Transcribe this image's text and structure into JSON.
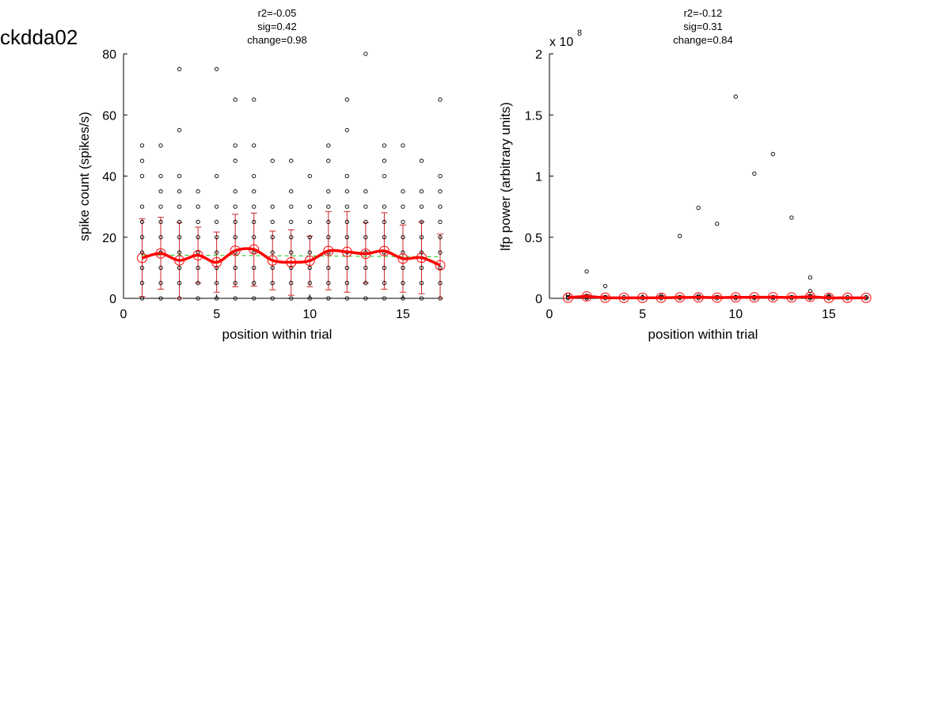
{
  "figure_title": "ckdda02",
  "colors": {
    "mean": "#ff0000",
    "errorbar": "#cc2222",
    "trend": "#33cc33",
    "points": "#000000"
  },
  "chart_data": [
    {
      "type": "scatter",
      "title_lines": [
        "r2=-0.05",
        "sig=0.42",
        "change=0.98"
      ],
      "xlabel": "position within trial",
      "ylabel": "spike count (spikes/s)",
      "xlim": [
        0,
        17
      ],
      "ylim": [
        0,
        80
      ],
      "xticks": [
        0,
        5,
        10,
        15
      ],
      "yticks": [
        0,
        20,
        40,
        60,
        80
      ],
      "ytick_labels": [
        "0",
        "20",
        "40",
        "60",
        "80"
      ],
      "exponent_label": "",
      "points": [
        {
          "x": 1,
          "ys": [
            0,
            5,
            10,
            15,
            20,
            25,
            30,
            40,
            45,
            50
          ]
        },
        {
          "x": 2,
          "ys": [
            0,
            5,
            10,
            15,
            20,
            25,
            30,
            35,
            40,
            50
          ]
        },
        {
          "x": 3,
          "ys": [
            0,
            5,
            10,
            15,
            20,
            25,
            30,
            35,
            40,
            55,
            75
          ]
        },
        {
          "x": 4,
          "ys": [
            0,
            5,
            10,
            15,
            20,
            25,
            30,
            35
          ]
        },
        {
          "x": 5,
          "ys": [
            0,
            5,
            10,
            15,
            20,
            25,
            30,
            40,
            75
          ]
        },
        {
          "x": 6,
          "ys": [
            0,
            5,
            10,
            15,
            20,
            25,
            30,
            35,
            45,
            50,
            65
          ]
        },
        {
          "x": 7,
          "ys": [
            0,
            5,
            10,
            15,
            20,
            25,
            30,
            35,
            40,
            50,
            65
          ]
        },
        {
          "x": 8,
          "ys": [
            0,
            5,
            10,
            15,
            20,
            25,
            30,
            45
          ]
        },
        {
          "x": 9,
          "ys": [
            0,
            5,
            10,
            15,
            20,
            25,
            30,
            35,
            45
          ]
        },
        {
          "x": 10,
          "ys": [
            0,
            5,
            10,
            15,
            20,
            25,
            30,
            40
          ]
        },
        {
          "x": 11,
          "ys": [
            0,
            5,
            10,
            15,
            20,
            25,
            30,
            35,
            45,
            50
          ]
        },
        {
          "x": 12,
          "ys": [
            0,
            5,
            10,
            15,
            20,
            25,
            30,
            35,
            40,
            55,
            65
          ]
        },
        {
          "x": 13,
          "ys": [
            0,
            5,
            10,
            15,
            20,
            25,
            30,
            35,
            80
          ]
        },
        {
          "x": 14,
          "ys": [
            0,
            5,
            10,
            15,
            20,
            25,
            30,
            40,
            45,
            50
          ]
        },
        {
          "x": 15,
          "ys": [
            0,
            5,
            10,
            15,
            20,
            25,
            30,
            35,
            50
          ]
        },
        {
          "x": 16,
          "ys": [
            0,
            5,
            10,
            15,
            20,
            25,
            30,
            35,
            45
          ]
        },
        {
          "x": 17,
          "ys": [
            0,
            5,
            10,
            15,
            20,
            25,
            30,
            35,
            40,
            65
          ]
        }
      ],
      "mean": {
        "x": [
          1,
          2,
          3,
          4,
          5,
          6,
          7,
          8,
          9,
          10,
          11,
          12,
          13,
          14,
          15,
          16,
          17
        ],
        "y": [
          13.2,
          14.7,
          12.4,
          14.1,
          11.8,
          15.6,
          16.0,
          12.4,
          11.8,
          12.3,
          15.5,
          15.2,
          14.6,
          15.5,
          13.0,
          13.3,
          10.8
        ]
      },
      "error_low": [
        0.6,
        3.0,
        0.0,
        5.0,
        2.0,
        3.8,
        4.0,
        2.8,
        1.0,
        3.8,
        2.8,
        2.0,
        5.0,
        3.0,
        2.0,
        1.5,
        0.0
      ],
      "error_high": [
        26.0,
        26.5,
        24.8,
        23.3,
        21.7,
        27.5,
        27.9,
        22.0,
        22.4,
        20.3,
        28.4,
        28.4,
        24.8,
        28.0,
        24.0,
        25.0,
        21.0
      ],
      "trend": {
        "x": [
          1,
          17
        ],
        "y": [
          14.2,
          13.6
        ]
      }
    },
    {
      "type": "scatter",
      "title_lines": [
        "r2=-0.12",
        "sig=0.31",
        "change=0.84"
      ],
      "xlabel": "position within trial",
      "ylabel": "lfp power (arbitrary units)",
      "xlim": [
        0,
        17
      ],
      "ylim": [
        0,
        2
      ],
      "xticks": [
        0,
        5,
        10,
        15
      ],
      "yticks": [
        0,
        0.5,
        1,
        1.5,
        2
      ],
      "ytick_labels": [
        "0",
        "0.5",
        "1",
        "1.5",
        "2"
      ],
      "exponent_label": "x 10",
      "exponent_sup": "8",
      "points": [
        {
          "x": 1,
          "ys": [
            0.0,
            0.01,
            0.03
          ]
        },
        {
          "x": 2,
          "ys": [
            0.0,
            0.01,
            0.02,
            0.22
          ]
        },
        {
          "x": 3,
          "ys": [
            0.0,
            0.01,
            0.1
          ]
        },
        {
          "x": 4,
          "ys": [
            0.0,
            0.01
          ]
        },
        {
          "x": 5,
          "ys": [
            0.0,
            0.01
          ]
        },
        {
          "x": 6,
          "ys": [
            0.0,
            0.01,
            0.02
          ]
        },
        {
          "x": 7,
          "ys": [
            0.0,
            0.01,
            0.51
          ]
        },
        {
          "x": 8,
          "ys": [
            0.0,
            0.01,
            0.02,
            0.74
          ]
        },
        {
          "x": 9,
          "ys": [
            0.0,
            0.01,
            0.61
          ]
        },
        {
          "x": 10,
          "ys": [
            0.0,
            0.01,
            1.65
          ]
        },
        {
          "x": 11,
          "ys": [
            0.0,
            0.01,
            1.02
          ]
        },
        {
          "x": 12,
          "ys": [
            0.0,
            0.01,
            1.18
          ]
        },
        {
          "x": 13,
          "ys": [
            0.0,
            0.01,
            0.66
          ]
        },
        {
          "x": 14,
          "ys": [
            0.0,
            0.01,
            0.02,
            0.06,
            0.17
          ]
        },
        {
          "x": 15,
          "ys": [
            0.0,
            0.01,
            0.02
          ]
        },
        {
          "x": 16,
          "ys": [
            0.0,
            0.01
          ]
        },
        {
          "x": 17,
          "ys": [
            0.0,
            0.01
          ]
        }
      ],
      "mean": {
        "x": [
          1,
          2,
          3,
          4,
          5,
          6,
          7,
          8,
          9,
          10,
          11,
          12,
          13,
          14,
          15,
          16,
          17
        ],
        "y": [
          0.005,
          0.015,
          0.005,
          0.004,
          0.004,
          0.005,
          0.007,
          0.008,
          0.006,
          0.008,
          0.008,
          0.009,
          0.007,
          0.012,
          0.004,
          0.004,
          0.004
        ]
      },
      "error_low": [
        0,
        0,
        0,
        0,
        0,
        0,
        0,
        0,
        0,
        0,
        0,
        0,
        0,
        0,
        0,
        0,
        0
      ],
      "error_high": [
        0.02,
        0.03,
        0.02,
        0.01,
        0.01,
        0.02,
        0.02,
        0.02,
        0.02,
        0.02,
        0.02,
        0.02,
        0.02,
        0.03,
        0.02,
        0.01,
        0.01
      ],
      "trend": {
        "x": [
          1,
          17
        ],
        "y": [
          0.007,
          0.007
        ]
      }
    }
  ]
}
